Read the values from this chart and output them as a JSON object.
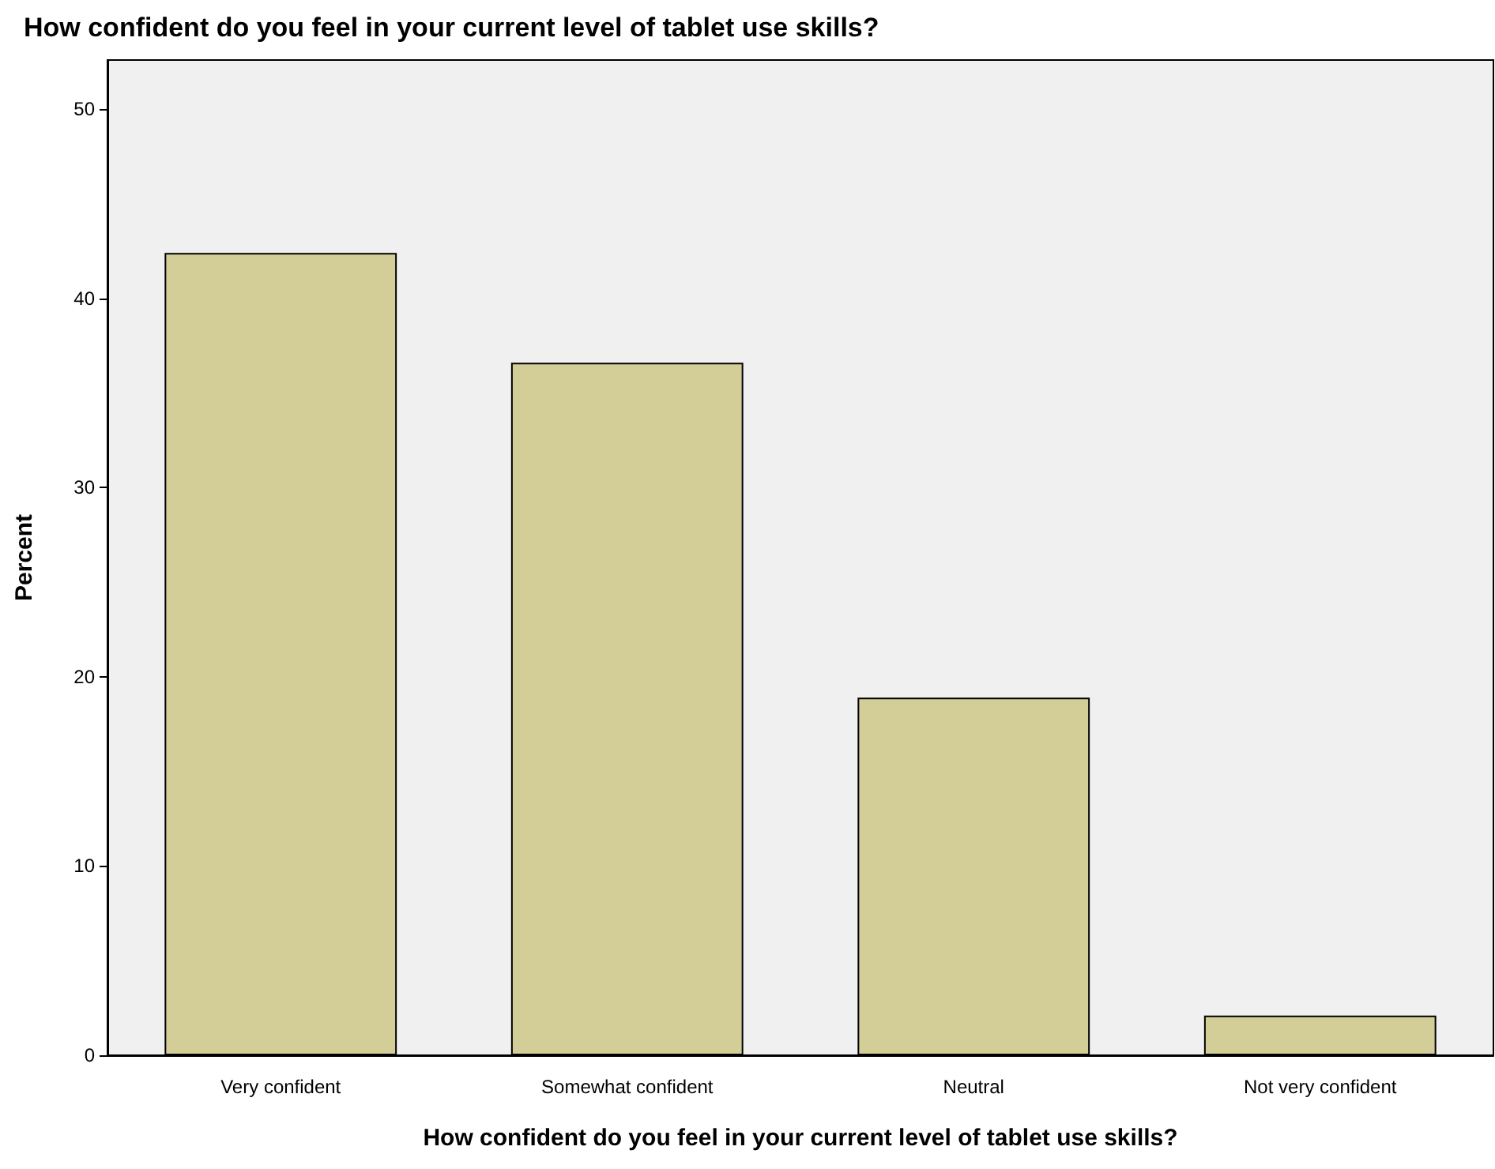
{
  "chart_data": {
    "type": "bar",
    "title": "How confident do you feel in your current level of tablet use skills?",
    "xlabel": "How confident do you feel in your current level of tablet use skills?",
    "ylabel": "Percent",
    "categories": [
      "Very confident",
      "Somewhat confident",
      "Neutral",
      "Not very confident"
    ],
    "values": [
      42.4,
      36.6,
      18.9,
      2.1
    ],
    "color": "#d3ce97",
    "ylim": [
      0,
      52.6
    ],
    "yticks": [
      0,
      10,
      20,
      30,
      40,
      50
    ],
    "grid": false
  }
}
